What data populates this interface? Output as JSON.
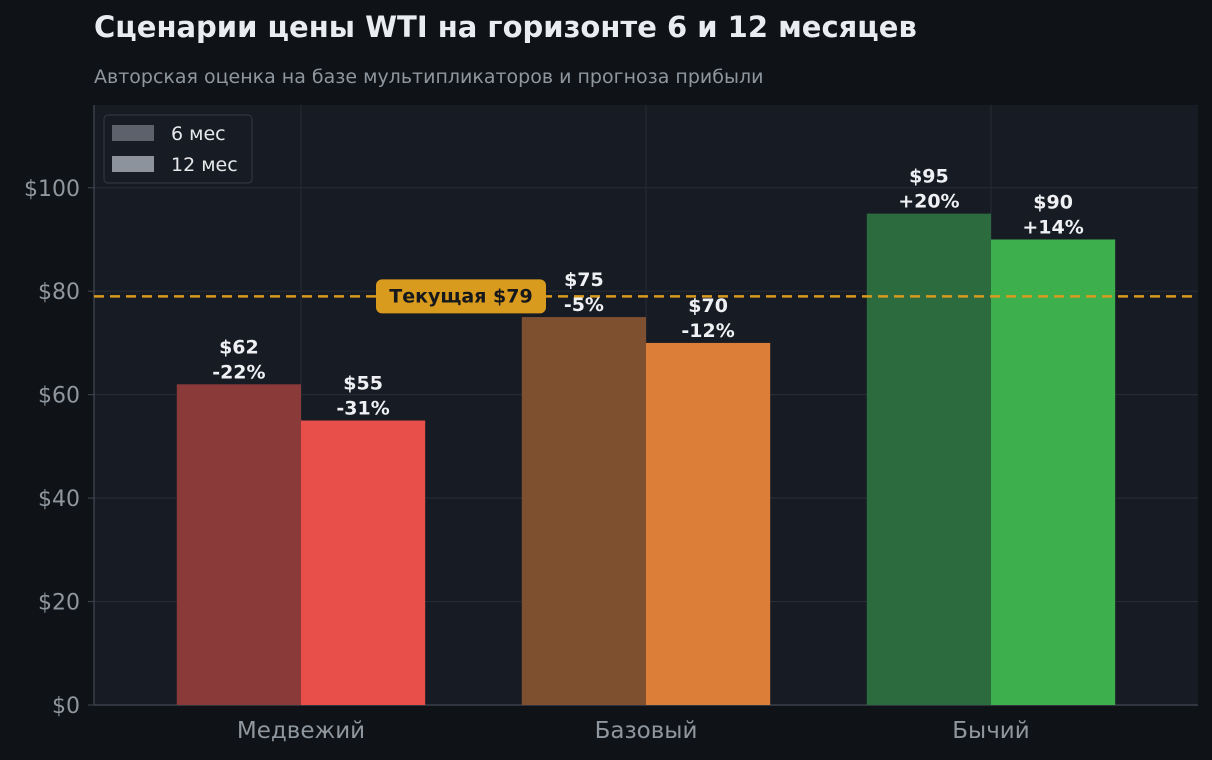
{
  "header": {
    "title": "Сценарии цены WTI на горизонте 6 и 12 месяцев",
    "subtitle": "Авторская оценка на базе мультипликаторов и прогноза прибыли"
  },
  "chart_data": {
    "type": "bar",
    "title": "Сценарии цены WTI на горизонте 6 и 12 месяцев",
    "subtitle": "Авторская оценка на базе мультипликаторов и прогноза прибыли",
    "xlabel": "",
    "ylabel": "",
    "categories": [
      "Медвежий",
      "Базовый",
      "Бычий"
    ],
    "series": [
      {
        "name": "6 мес",
        "values": [
          62,
          75,
          95
        ],
        "labels": [
          "$62",
          "$75",
          "$95"
        ],
        "changes": [
          "-22%",
          "-5%",
          "+20%"
        ],
        "colors": [
          "#8b3a3a",
          "#7f5030",
          "#2b6b3d"
        ]
      },
      {
        "name": "12 мес",
        "values": [
          55,
          70,
          90
        ],
        "labels": [
          "$55",
          "$70",
          "$90"
        ],
        "changes": [
          "-31%",
          "-12%",
          "+14%"
        ],
        "colors": [
          "#e84e4a",
          "#dc7d38",
          "#3db04d"
        ]
      }
    ],
    "legend_colors": [
      "#5c616b",
      "#8c939c"
    ],
    "ylim": [
      0,
      116
    ],
    "yticks": [
      0,
      20,
      40,
      60,
      80,
      100
    ],
    "ytick_labels": [
      "$0",
      "$20",
      "$40",
      "$60",
      "$80",
      "$100"
    ],
    "reference_line": {
      "value": 79,
      "label": "Текущая $79",
      "color": "#d99b1e"
    },
    "legend_position": "top-left",
    "grid": true
  }
}
